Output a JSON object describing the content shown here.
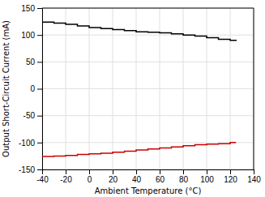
{
  "chart_data": {
    "type": "line",
    "xlabel": "Ambient Temperature (°C)",
    "ylabel": "Output Short-Circuit Current (mA)",
    "x": [
      -40,
      -30,
      -20,
      -10,
      0,
      10,
      20,
      30,
      40,
      50,
      60,
      70,
      80,
      90,
      100,
      110,
      120,
      125
    ],
    "series": [
      {
        "color": "#000000",
        "line_style": "steps",
        "values": [
          124,
          122,
          120,
          117,
          114,
          112,
          110,
          108,
          106,
          105,
          104,
          102,
          100,
          98,
          95,
          92,
          90,
          89
        ]
      },
      {
        "color": "#cc0000",
        "line_style": "steps",
        "values": [
          -126,
          -125,
          -124,
          -122,
          -121,
          -120,
          -118,
          -116,
          -114,
          -112,
          -110,
          -108,
          -106,
          -104,
          -103,
          -102,
          -100,
          -100
        ]
      }
    ],
    "xlim": [
      -40,
      140
    ],
    "ylim": [
      -150,
      150
    ],
    "xticks": [
      -40,
      -20,
      0,
      20,
      40,
      60,
      80,
      100,
      120,
      140
    ],
    "yticks": [
      -150,
      -100,
      -50,
      0,
      50,
      100,
      150
    ],
    "grid": true
  }
}
